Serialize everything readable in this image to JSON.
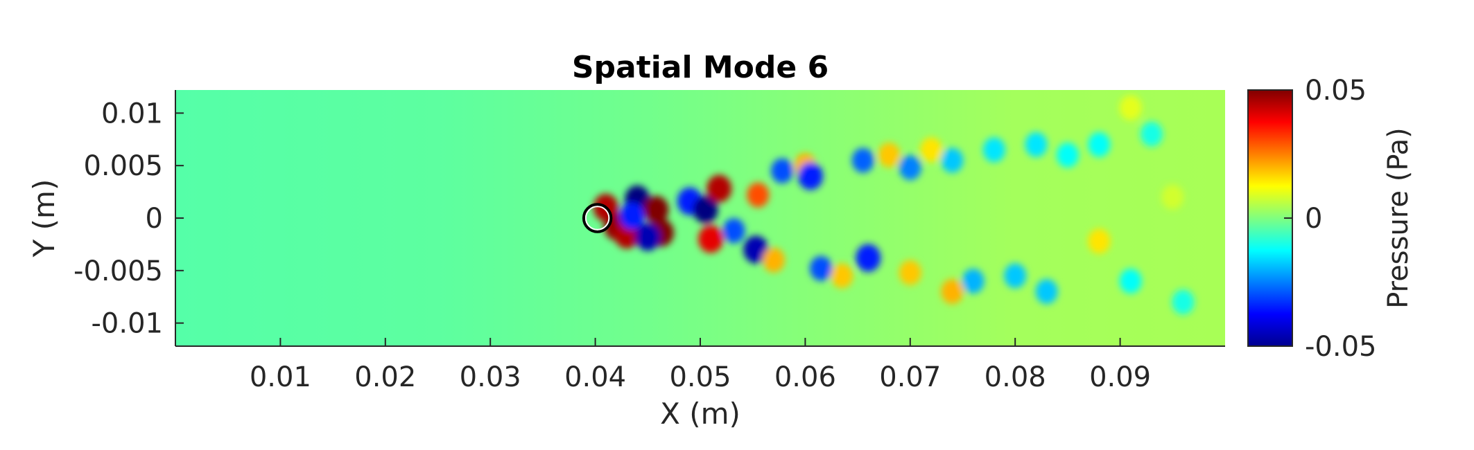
{
  "chart_data": {
    "type": "heatmap",
    "title": "Spatial Mode 6",
    "xlabel": "X (m)",
    "ylabel": "Y (m)",
    "xlim": [
      0,
      0.1
    ],
    "ylim": [
      -0.0122,
      0.0122
    ],
    "xticks": [
      0.01,
      0.02,
      0.03,
      0.04,
      0.05,
      0.06,
      0.07,
      0.08,
      0.09
    ],
    "xtick_labels": [
      "0.01",
      "0.02",
      "0.03",
      "0.04",
      "0.05",
      "0.06",
      "0.07",
      "0.08",
      "0.09"
    ],
    "yticks": [
      0.01,
      0.005,
      0,
      -0.005,
      -0.01
    ],
    "ytick_labels": [
      "0.01",
      "0.005",
      "0",
      "-0.005",
      "-0.01"
    ],
    "colormap": "jet",
    "colorbar": {
      "label": "Pressure (Pa)",
      "range": [
        -0.05,
        0.05
      ],
      "ticks": [
        0.05,
        0,
        -0.05
      ],
      "tick_labels": [
        "0.05",
        "0",
        "-0.05"
      ]
    },
    "cylinder": {
      "x": 0.0402,
      "y": 0.0,
      "diameter": 0.0026
    },
    "background_level": -0.008,
    "features": [
      {
        "x": 0.041,
        "y": 0.001,
        "value": 0.045
      },
      {
        "x": 0.042,
        "y": -0.0008,
        "value": 0.048
      },
      {
        "x": 0.043,
        "y": -0.0016,
        "value": 0.045
      },
      {
        "x": 0.044,
        "y": 0.0018,
        "value": -0.05
      },
      {
        "x": 0.0435,
        "y": 0.0002,
        "value": -0.035
      },
      {
        "x": 0.0458,
        "y": 0.0008,
        "value": 0.05
      },
      {
        "x": 0.0463,
        "y": -0.0014,
        "value": 0.05
      },
      {
        "x": 0.045,
        "y": -0.0018,
        "value": -0.045
      },
      {
        "x": 0.049,
        "y": 0.0016,
        "value": -0.035
      },
      {
        "x": 0.0505,
        "y": 0.0008,
        "value": -0.05
      },
      {
        "x": 0.0518,
        "y": 0.0028,
        "value": 0.045
      },
      {
        "x": 0.051,
        "y": -0.002,
        "value": 0.04
      },
      {
        "x": 0.0532,
        "y": -0.0012,
        "value": -0.03
      },
      {
        "x": 0.0555,
        "y": 0.0022,
        "value": 0.03
      },
      {
        "x": 0.0553,
        "y": -0.003,
        "value": -0.045
      },
      {
        "x": 0.057,
        "y": -0.004,
        "value": 0.02
      },
      {
        "x": 0.0578,
        "y": 0.0045,
        "value": -0.03
      },
      {
        "x": 0.06,
        "y": 0.005,
        "value": 0.02
      },
      {
        "x": 0.0605,
        "y": 0.004,
        "value": -0.035
      },
      {
        "x": 0.0615,
        "y": -0.0048,
        "value": -0.03
      },
      {
        "x": 0.0635,
        "y": -0.0055,
        "value": 0.018
      },
      {
        "x": 0.0655,
        "y": 0.0055,
        "value": -0.028
      },
      {
        "x": 0.066,
        "y": -0.0038,
        "value": -0.035
      },
      {
        "x": 0.068,
        "y": 0.006,
        "value": 0.018
      },
      {
        "x": 0.07,
        "y": 0.0048,
        "value": -0.025
      },
      {
        "x": 0.07,
        "y": -0.0052,
        "value": 0.018
      },
      {
        "x": 0.072,
        "y": 0.0065,
        "value": 0.015
      },
      {
        "x": 0.074,
        "y": -0.007,
        "value": 0.02
      },
      {
        "x": 0.074,
        "y": 0.0055,
        "value": -0.018
      },
      {
        "x": 0.076,
        "y": -0.006,
        "value": -0.02
      },
      {
        "x": 0.078,
        "y": 0.0065,
        "value": -0.015
      },
      {
        "x": 0.08,
        "y": -0.0055,
        "value": -0.018
      },
      {
        "x": 0.082,
        "y": 0.007,
        "value": -0.015
      },
      {
        "x": 0.083,
        "y": -0.007,
        "value": -0.018
      },
      {
        "x": 0.085,
        "y": 0.006,
        "value": -0.012
      },
      {
        "x": 0.088,
        "y": -0.0022,
        "value": 0.015
      },
      {
        "x": 0.088,
        "y": 0.007,
        "value": -0.012
      },
      {
        "x": 0.091,
        "y": -0.006,
        "value": -0.012
      },
      {
        "x": 0.093,
        "y": 0.008,
        "value": -0.01
      },
      {
        "x": 0.096,
        "y": -0.008,
        "value": -0.01
      },
      {
        "x": 0.091,
        "y": 0.0105,
        "value": 0.01
      },
      {
        "x": 0.095,
        "y": 0.002,
        "value": 0.008
      }
    ]
  }
}
